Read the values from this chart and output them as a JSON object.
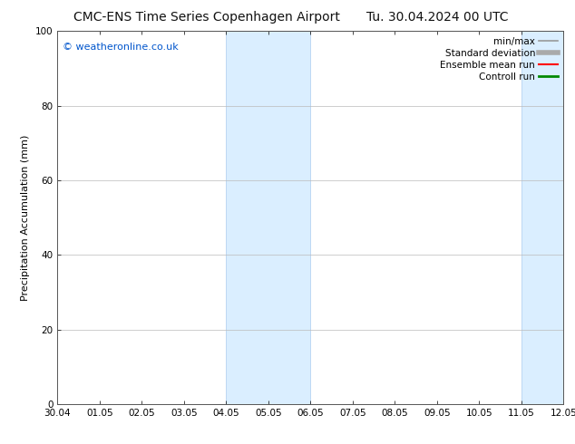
{
  "title_left": "CMC-ENS Time Series Copenhagen Airport",
  "title_right": "Tu. 30.04.2024 00 UTC",
  "ylabel": "Precipitation Accumulation (mm)",
  "watermark": "© weatheronline.co.uk",
  "watermark_color": "#0055cc",
  "ylim": [
    0,
    100
  ],
  "yticks": [
    0,
    20,
    40,
    60,
    80,
    100
  ],
  "xtick_labels": [
    "30.04",
    "01.05",
    "02.05",
    "03.05",
    "04.05",
    "05.05",
    "06.05",
    "07.05",
    "08.05",
    "09.05",
    "10.05",
    "11.05",
    "12.05"
  ],
  "shaded_regions": [
    {
      "xmin": 4.0,
      "xmax": 6.0,
      "facecolor": "#daeeff",
      "edgecolor": "#aaccee"
    },
    {
      "xmin": 11.0,
      "xmax": 13.0,
      "facecolor": "#daeeff",
      "edgecolor": "#aaccee"
    }
  ],
  "background_color": "#ffffff",
  "plot_background": "#ffffff",
  "grid_color": "#bbbbbb",
  "legend_entries": [
    {
      "label": "min/max",
      "color": "#999999",
      "lw": 1.2
    },
    {
      "label": "Standard deviation",
      "color": "#aaaaaa",
      "lw": 4.0
    },
    {
      "label": "Ensemble mean run",
      "color": "#ff0000",
      "lw": 1.5
    },
    {
      "label": "Controll run",
      "color": "#008800",
      "lw": 2.0
    }
  ],
  "title_fontsize": 10,
  "axis_fontsize": 8,
  "tick_fontsize": 7.5,
  "legend_fontsize": 7.5,
  "watermark_fontsize": 8
}
